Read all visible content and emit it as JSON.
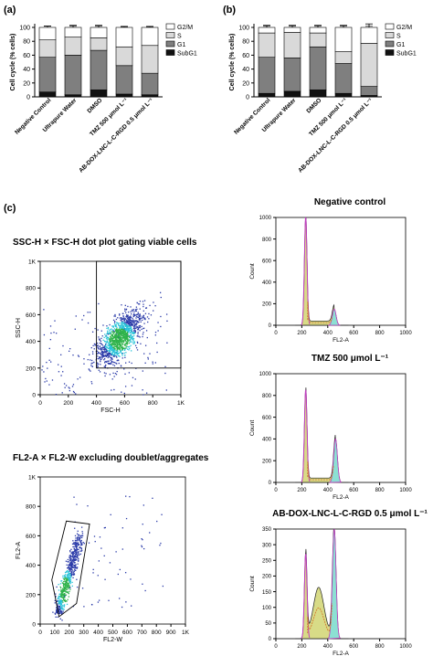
{
  "panel_a_label": "(a)",
  "panel_b_label": "(b)",
  "panel_c_label": "(c)",
  "colors": {
    "G2M": "#ffffff",
    "S": "#d9d9d9",
    "G1": "#7f7f7f",
    "SubG1": "#111111",
    "hist_fill": "#d4d77a",
    "hist_peak_edge": "#c040c0",
    "hist_g2_fill": "#7fe0e0",
    "hist_s_edge": "#d27a2e",
    "dot_high": "#2fb34a",
    "dot_mid": "#27c3d8",
    "dot_low": "#2a3aa8"
  },
  "chart_data": [
    {
      "id": "a",
      "type": "bar",
      "stacked": true,
      "ylabel": "Cell cycle (% cells)",
      "ylim": [
        0,
        100
      ],
      "yticks": [
        0,
        20,
        40,
        60,
        80,
        100
      ],
      "categories": [
        "Negative Control",
        "Ultrapure Water",
        "DMSO",
        "TMZ 500 μmol L⁻¹",
        "AB-DOX-LNC-L-C-RGD 0.5 μmol L⁻¹"
      ],
      "series": [
        {
          "name": "SubG1",
          "values": [
            7,
            3,
            10,
            4,
            3
          ]
        },
        {
          "name": "G1",
          "values": [
            50,
            57,
            57,
            41,
            31
          ]
        },
        {
          "name": "S",
          "values": [
            25,
            26,
            18,
            27,
            40
          ]
        },
        {
          "name": "G2/M",
          "values": [
            18,
            14,
            15,
            28,
            26
          ]
        }
      ],
      "error_tops": [
        2,
        3,
        3,
        1,
        1
      ]
    },
    {
      "id": "b",
      "type": "bar",
      "stacked": true,
      "ylabel": "Cell cycle (% cells)",
      "ylim": [
        0,
        100
      ],
      "yticks": [
        0,
        20,
        40,
        60,
        80,
        100
      ],
      "categories": [
        "Negative Control",
        "Ultrapure Water",
        "DMSO",
        "TMZ 500 μmol L⁻¹",
        "AB-DOX-LNC-L-C-RGD 0.5 μmol L⁻¹"
      ],
      "series": [
        {
          "name": "SubG1",
          "values": [
            5,
            8,
            10,
            5,
            2
          ]
        },
        {
          "name": "G1",
          "values": [
            52,
            48,
            62,
            43,
            13
          ]
        },
        {
          "name": "S",
          "values": [
            35,
            37,
            20,
            17,
            62
          ]
        },
        {
          "name": "G2/M",
          "values": [
            8,
            7,
            8,
            35,
            23
          ]
        }
      ],
      "error_tops": [
        3,
        3,
        3,
        3,
        5
      ]
    },
    {
      "id": "ssc_fsc",
      "type": "scatter",
      "title": "SSC-H × FSC-H dot plot gating viable cells",
      "xlabel": "FSC-H",
      "ylabel": "SSC-H",
      "xticks": [
        "0",
        "200",
        "400",
        "600",
        "800",
        "1K"
      ],
      "yticks": [
        "0",
        "200",
        "400",
        "600",
        "800",
        "1K"
      ],
      "xlim": [
        0,
        1000
      ],
      "ylim": [
        0,
        1000
      ],
      "gate": [
        [
          400,
          200
        ],
        [
          1000,
          200
        ],
        [
          1000,
          1000
        ],
        [
          400,
          1000
        ]
      ]
    },
    {
      "id": "fl2",
      "type": "scatter",
      "title": "FL2-A × FL2-W excluding doublet/aggregates",
      "xlabel": "FL2-W",
      "ylabel": "FL2-A",
      "xticks": [
        "0",
        "100",
        "200",
        "300",
        "400",
        "500",
        "600",
        "700",
        "800",
        "900",
        "1K"
      ],
      "yticks": [
        "0",
        "200",
        "400",
        "600",
        "800",
        "1K"
      ],
      "xlim": [
        0,
        1000
      ],
      "ylim": [
        0,
        1000
      ],
      "gate": [
        [
          130,
          50
        ],
        [
          250,
          140
        ],
        [
          340,
          680
        ],
        [
          180,
          700
        ],
        [
          80,
          300
        ]
      ]
    },
    {
      "id": "hist_neg",
      "type": "area",
      "title": "Negative control",
      "xlabel": "FL2-A",
      "ylabel": "Count",
      "ylim": [
        0,
        1000
      ],
      "yticks": [
        0,
        200,
        400,
        600,
        800,
        1000
      ],
      "xlim": [
        0,
        1000
      ],
      "xticks": [
        0,
        200,
        400,
        600,
        800,
        1000
      ],
      "peaks": [
        {
          "x": 230,
          "height": 1000
        },
        {
          "x": 450,
          "height": 150
        }
      ]
    },
    {
      "id": "hist_tmz",
      "type": "area",
      "title": "TMZ 500 μmol L⁻¹",
      "xlabel": "FL2-A",
      "ylabel": "Count",
      "ylim": [
        0,
        1000
      ],
      "yticks": [
        0,
        200,
        400,
        600,
        800,
        1000
      ],
      "xlim": [
        0,
        1000
      ],
      "xticks": [
        0,
        200,
        400,
        600,
        800,
        1000
      ],
      "peaks": [
        {
          "x": 230,
          "height": 850
        },
        {
          "x": 460,
          "height": 400
        }
      ]
    },
    {
      "id": "hist_ab",
      "type": "area",
      "title": "AB-DOX-LNC-L-C-RGD 0.5 μmol L⁻¹",
      "xlabel": "FL2-A",
      "ylabel": "Count",
      "ylim": [
        0,
        350
      ],
      "yticks": [
        0,
        50,
        100,
        150,
        200,
        250,
        300,
        350
      ],
      "xlim": [
        0,
        1000
      ],
      "xticks": [
        0,
        200,
        400,
        600,
        800,
        1000
      ],
      "peaks": [
        {
          "x": 230,
          "height": 270
        },
        {
          "x": 330,
          "height": 150
        },
        {
          "x": 450,
          "height": 350
        }
      ]
    }
  ]
}
